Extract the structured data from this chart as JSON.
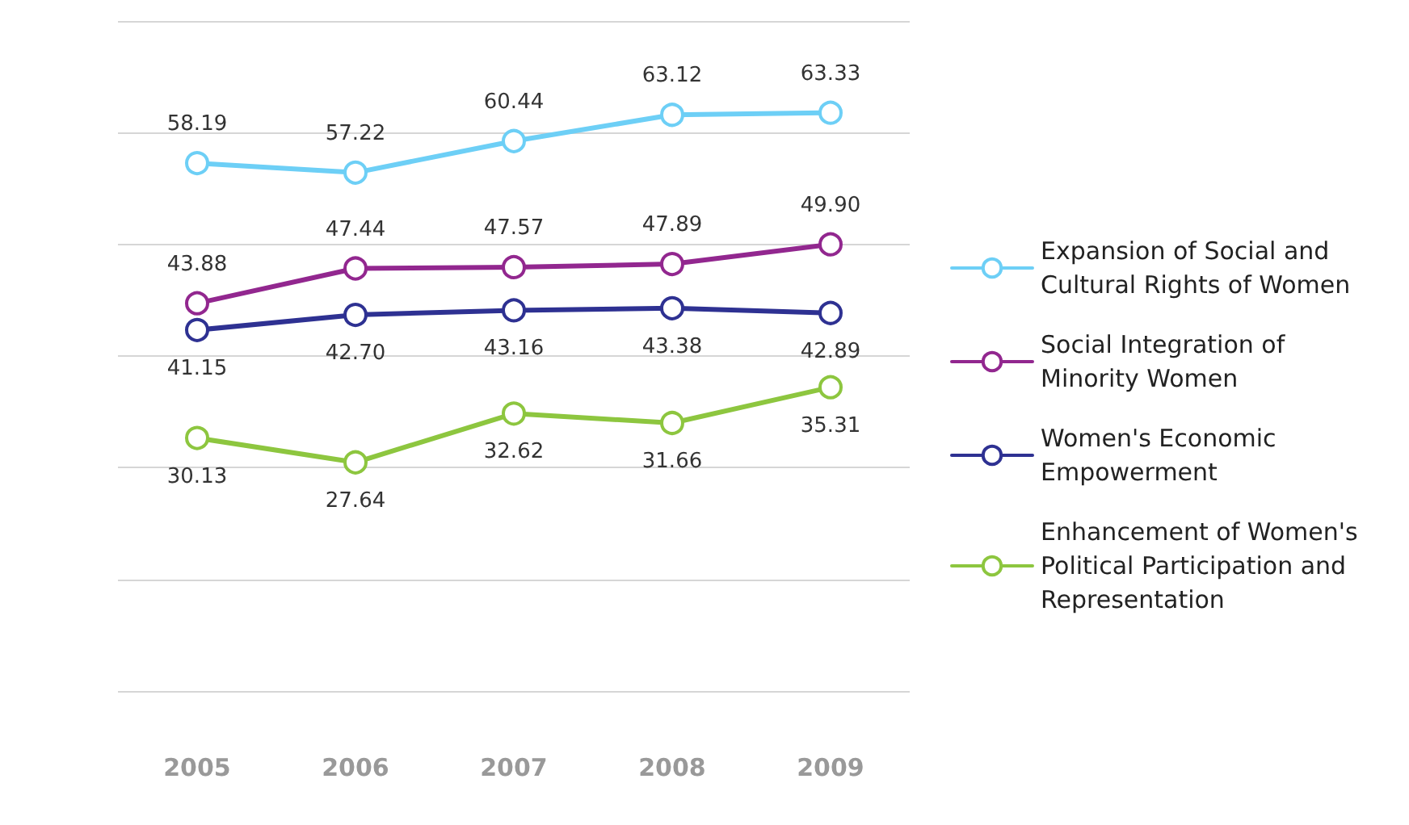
{
  "chart_data": {
    "type": "line",
    "categories": [
      "2005",
      "2006",
      "2007",
      "2008",
      "2009"
    ],
    "series": [
      {
        "name": "Expansion of Social and Cultural Rights of Women",
        "color": "#6dcff6",
        "values": [
          58.19,
          57.22,
          60.44,
          63.12,
          63.33
        ],
        "value_labels": [
          "58.19",
          "57.22",
          "60.44",
          "63.12",
          "63.33"
        ]
      },
      {
        "name": "Social Integration of Minority Women",
        "color": "#92278f",
        "values": [
          43.88,
          47.44,
          47.57,
          47.89,
          49.9
        ],
        "value_labels": [
          "43.88",
          "47.44",
          "47.57",
          "47.89",
          "49.90"
        ]
      },
      {
        "name": "Women's Economic Empowerment",
        "color": "#2e3192",
        "values": [
          41.15,
          42.7,
          43.16,
          43.38,
          42.89
        ],
        "value_labels": [
          "41.15",
          "42.70",
          "43.16",
          "43.38",
          "42.89"
        ]
      },
      {
        "name": "Enhancement of Women's Political Participation and Representation",
        "color": "#8dc63f",
        "values": [
          30.13,
          27.64,
          32.62,
          31.66,
          35.31
        ],
        "value_labels": [
          "30.13",
          "27.64",
          "32.62",
          "31.66",
          "35.31"
        ]
      }
    ],
    "ylim": [
      4.3,
      72.7
    ],
    "yticks": [
      {
        "value": 4.3,
        "label": null
      },
      {
        "value": 15.7,
        "label": null
      },
      {
        "value": 27.1,
        "label": null
      },
      {
        "value": 38.5,
        "label": null
      },
      {
        "value": 49.9,
        "label": null
      },
      {
        "value": 61.3,
        "label": null
      },
      {
        "value": 72.7,
        "label": null
      }
    ],
    "grid": "y",
    "legend": "right",
    "marker": "circle",
    "line_style": "solid",
    "tick_labels": "x"
  }
}
